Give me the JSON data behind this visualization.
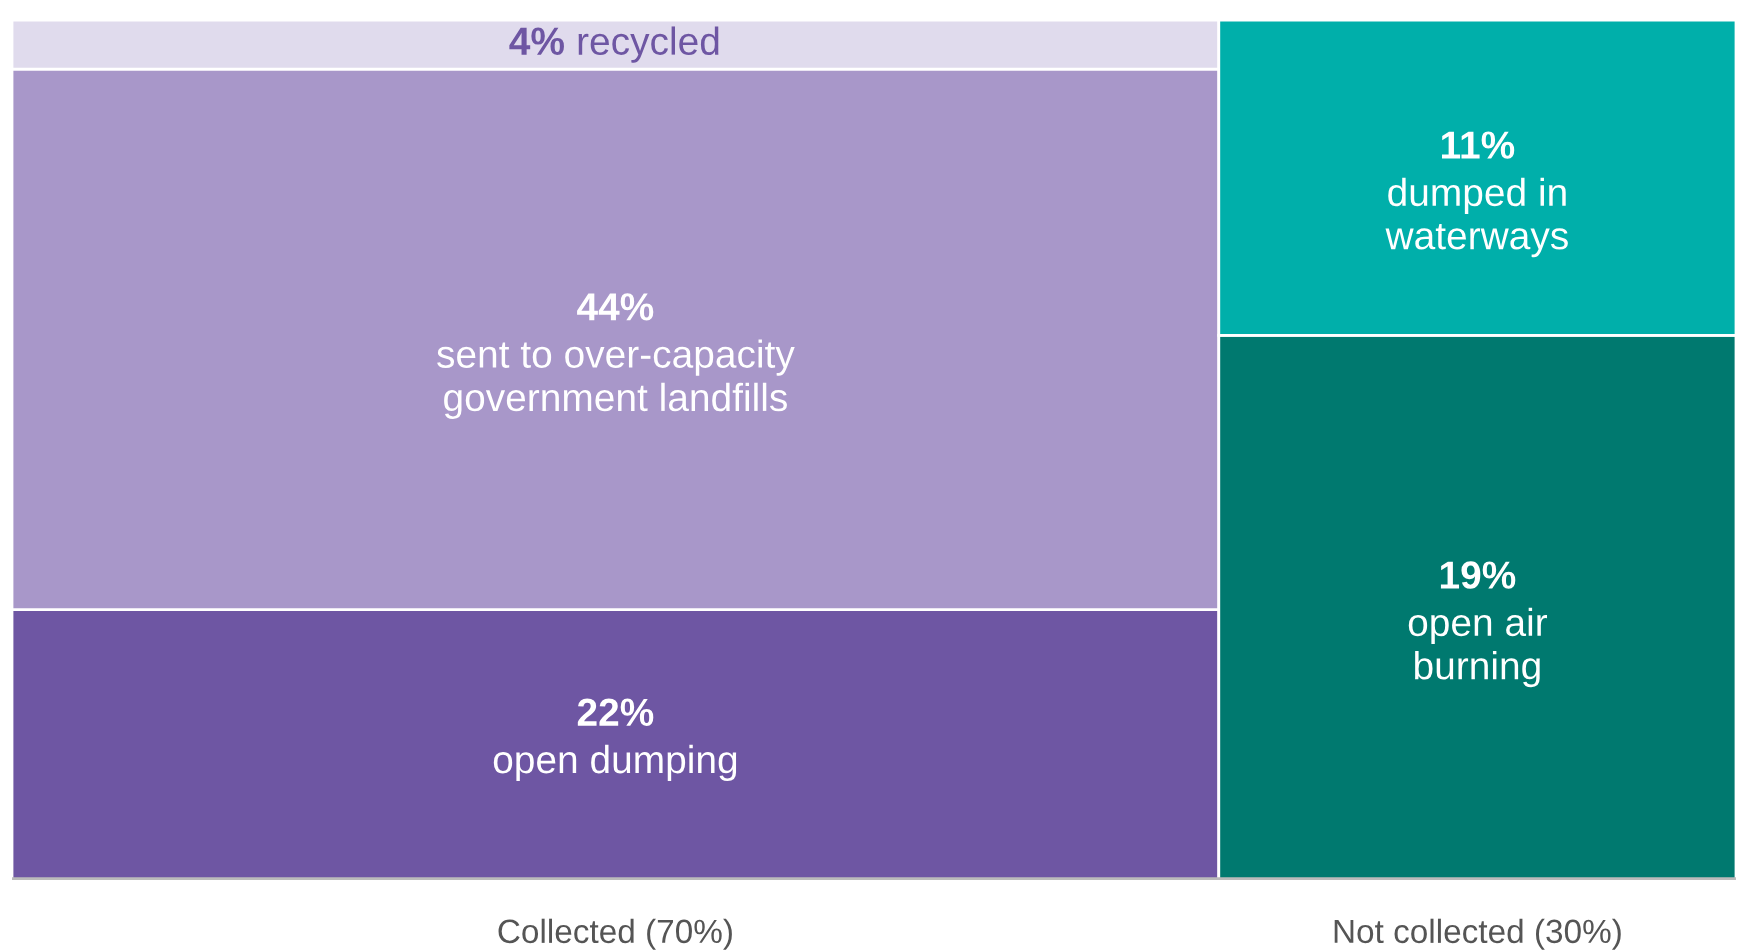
{
  "chart_data": {
    "type": "other",
    "categories": [
      "Collected (70%)",
      "Not collected (30%)"
    ],
    "series": [
      {
        "name": "open dumping",
        "color": "#6e56a3",
        "values": [
          22,
          null
        ],
        "value_labels": [
          "22%",
          null
        ]
      },
      {
        "name": "sent to over-capacity\ngovernment landfills",
        "color": "#a897c9",
        "values": [
          44,
          null
        ],
        "value_labels": [
          "44%",
          null
        ]
      },
      {
        "name": "recycled",
        "color": "#e0dbed",
        "values": [
          4,
          null
        ],
        "value_labels": [
          "4%",
          null
        ]
      },
      {
        "name": "open air\nburning",
        "color": "#00796f",
        "values": [
          null,
          19
        ],
        "value_labels": [
          null,
          "19%"
        ]
      },
      {
        "name": "dumped in\nwaterways",
        "color": "#00afaa",
        "values": [
          null,
          11
        ],
        "value_labels": [
          null,
          "11%"
        ]
      }
    ]
  }
}
